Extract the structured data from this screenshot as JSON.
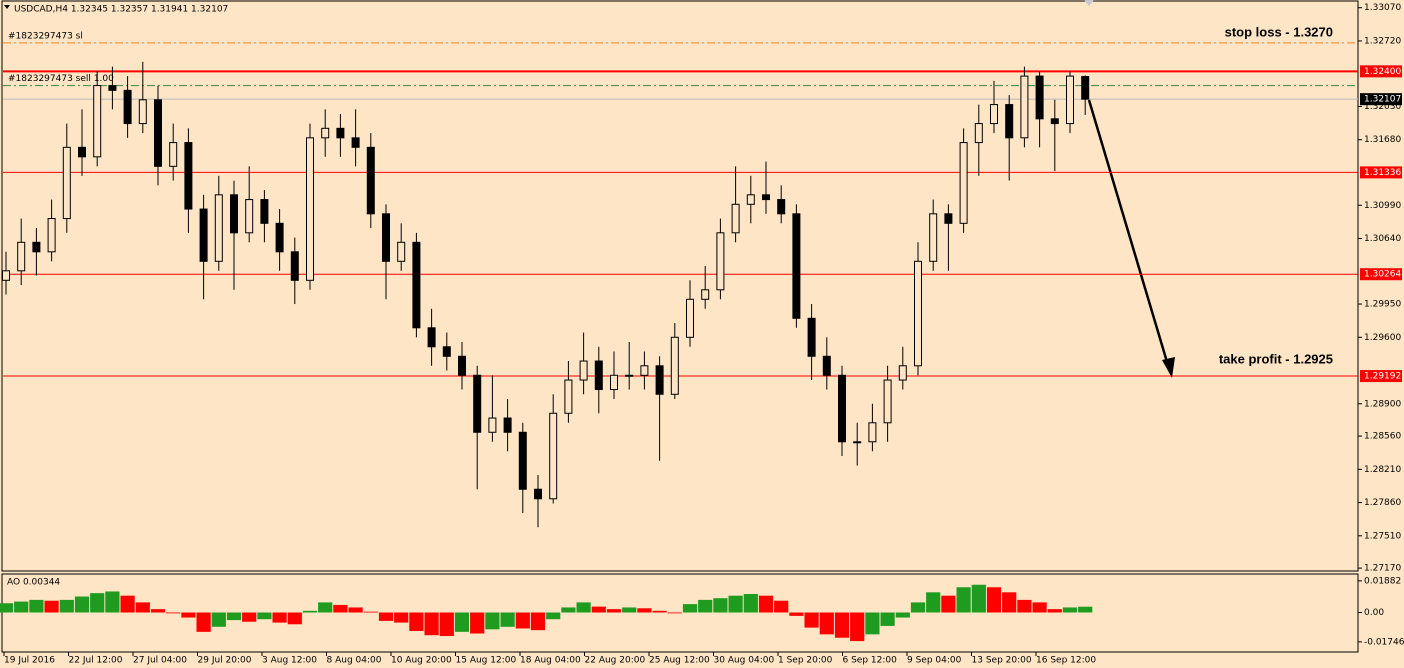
{
  "chart_data": [
    {
      "type": "candlestick",
      "title": "USDCAD,H4  1.32345 1.32357 1.31941 1.32107",
      "open": [
        1.302,
        1.303,
        1.306,
        1.305,
        1.3085,
        1.316,
        1.315,
        1.3225,
        1.322,
        1.3185,
        1.321,
        1.314,
        1.3165,
        1.3095,
        1.304,
        1.311,
        1.307,
        1.3105,
        1.308,
        1.305,
        1.302,
        1.317,
        1.318,
        1.317,
        1.316,
        1.309,
        1.304,
        1.306,
        1.297,
        1.295,
        1.294,
        1.292,
        1.286,
        1.2875,
        1.286,
        1.28,
        1.279,
        1.288,
        1.2915,
        1.2935,
        1.2905,
        1.292,
        1.292,
        1.293,
        1.29,
        1.296,
        1.3,
        1.301,
        1.307,
        1.31,
        1.311,
        1.3105,
        1.309,
        1.298,
        1.294,
        1.292,
        1.285,
        1.285,
        1.287,
        1.2915,
        1.293,
        1.304,
        1.309,
        1.308,
        1.3165,
        1.3185,
        1.3205,
        1.317,
        1.3235,
        1.319,
        1.3185,
        1.32345
      ],
      "high": [
        1.305,
        1.3085,
        1.3075,
        1.3105,
        1.3185,
        1.32,
        1.324,
        1.3245,
        1.3235,
        1.325,
        1.3225,
        1.3185,
        1.318,
        1.311,
        1.313,
        1.3125,
        1.314,
        1.3115,
        1.3095,
        1.3065,
        1.3185,
        1.32,
        1.3195,
        1.32,
        1.3175,
        1.31,
        1.308,
        1.307,
        1.299,
        1.2965,
        1.2955,
        1.293,
        1.292,
        1.2895,
        1.287,
        1.2815,
        1.29,
        1.2935,
        1.2965,
        1.295,
        1.2945,
        1.2955,
        1.2945,
        1.294,
        1.2975,
        1.302,
        1.3035,
        1.3085,
        1.314,
        1.313,
        1.3145,
        1.312,
        1.31,
        1.2995,
        1.296,
        1.293,
        1.287,
        1.289,
        1.293,
        1.295,
        1.306,
        1.3105,
        1.31,
        1.318,
        1.3205,
        1.323,
        1.3215,
        1.3245,
        1.324,
        1.321,
        1.324,
        1.32357
      ],
      "low": [
        1.3005,
        1.3015,
        1.3025,
        1.304,
        1.307,
        1.313,
        1.314,
        1.32,
        1.317,
        1.3175,
        1.312,
        1.3125,
        1.307,
        1.3,
        1.303,
        1.301,
        1.306,
        1.306,
        1.303,
        1.2995,
        1.301,
        1.315,
        1.315,
        1.314,
        1.3075,
        1.3,
        1.303,
        1.296,
        1.293,
        1.2925,
        1.2905,
        1.28,
        1.285,
        1.284,
        1.2775,
        1.276,
        1.2785,
        1.287,
        1.29,
        1.288,
        1.2895,
        1.2905,
        1.2905,
        1.283,
        1.2895,
        1.295,
        1.299,
        1.3,
        1.306,
        1.308,
        1.309,
        1.308,
        1.297,
        1.2915,
        1.2905,
        1.2835,
        1.2825,
        1.284,
        1.285,
        1.2905,
        1.292,
        1.303,
        1.303,
        1.307,
        1.313,
        1.3175,
        1.3125,
        1.316,
        1.316,
        1.3135,
        1.3175,
        1.31941
      ],
      "close": [
        1.303,
        1.306,
        1.305,
        1.3085,
        1.316,
        1.315,
        1.3225,
        1.322,
        1.3185,
        1.321,
        1.314,
        1.3165,
        1.3095,
        1.304,
        1.311,
        1.307,
        1.3105,
        1.308,
        1.305,
        1.302,
        1.317,
        1.318,
        1.317,
        1.316,
        1.309,
        1.304,
        1.306,
        1.297,
        1.295,
        1.294,
        1.292,
        1.286,
        1.2875,
        1.286,
        1.28,
        1.279,
        1.288,
        1.2915,
        1.2935,
        1.2905,
        1.292,
        1.292,
        1.293,
        1.29,
        1.296,
        1.3,
        1.301,
        1.307,
        1.31,
        1.311,
        1.3105,
        1.309,
        1.298,
        1.294,
        1.292,
        1.285,
        1.285,
        1.287,
        1.2915,
        1.293,
        1.304,
        1.309,
        1.308,
        1.3165,
        1.3185,
        1.3205,
        1.317,
        1.3235,
        1.319,
        1.3185,
        1.3235,
        1.32107
      ],
      "ylim": [
        1.2715,
        1.3313
      ],
      "yticks": [
        {
          "value": 1.3307,
          "label": "1.33070"
        },
        {
          "value": 1.3272,
          "label": "1.32720"
        },
        {
          "value": 1.3203,
          "label": "1.32030"
        },
        {
          "value": 1.3168,
          "label": "1.31680"
        },
        {
          "value": 1.3099,
          "label": "1.30990"
        },
        {
          "value": 1.3064,
          "label": "1.30640"
        },
        {
          "value": 1.2995,
          "label": "1.29950"
        },
        {
          "value": 1.296,
          "label": "1.29600"
        },
        {
          "value": 1.289,
          "label": "1.28900"
        },
        {
          "value": 1.2856,
          "label": "1.28560"
        },
        {
          "value": 1.2821,
          "label": "1.28210"
        },
        {
          "value": 1.2786,
          "label": "1.27860"
        },
        {
          "value": 1.2751,
          "label": "1.27510"
        },
        {
          "value": 1.2717,
          "label": "1.27170"
        }
      ],
      "levels": [
        {
          "value": 1.324,
          "label": "1.32400",
          "color": "#ff0000"
        },
        {
          "value": 1.31336,
          "label": "1.31336",
          "color": "#ff0000"
        },
        {
          "value": 1.30264,
          "label": "1.30264",
          "color": "#ff0000"
        },
        {
          "value": 1.29192,
          "label": "1.29192",
          "color": "#ff0000"
        }
      ],
      "last_price": {
        "value": 1.32107,
        "label": "1.32107"
      },
      "trade_lines": [
        {
          "value": 1.327,
          "label": "#1823297473 sl",
          "color": "#ff7f27"
        },
        {
          "value": 1.3225,
          "label": "#1823297473 sell 1.00",
          "color": "#3a8a3a"
        }
      ],
      "annotations": [
        "stop loss - 1.3270",
        "take profit - 1.2925"
      ],
      "x_labels": [
        "19 Jul 2016",
        "22 Jul 12:00",
        "27 Jul 04:00",
        "29 Jul 20:00",
        "3 Aug 12:00",
        "8 Aug 04:00",
        "10 Aug 20:00",
        "15 Aug 12:00",
        "18 Aug 04:00",
        "22 Aug 20:00",
        "25 Aug 12:00",
        "30 Aug 04:00",
        "1 Sep 20:00",
        "6 Sep 12:00",
        "9 Sep 04:00",
        "13 Sep 20:00",
        "16 Sep 12:00"
      ]
    },
    {
      "type": "bar",
      "title": "AO 0.00344",
      "values": [
        0.0055,
        0.0065,
        0.0075,
        0.007,
        0.0075,
        0.0095,
        0.0115,
        0.0125,
        0.01,
        0.006,
        0.002,
        -0.0005,
        -0.003,
        -0.0115,
        -0.0085,
        -0.0045,
        -0.0055,
        -0.004,
        -0.006,
        -0.007,
        0.001,
        0.006,
        0.0045,
        0.003,
        0.0005,
        -0.005,
        -0.006,
        -0.011,
        -0.0135,
        -0.014,
        -0.0115,
        -0.0125,
        -0.01,
        -0.0085,
        -0.0095,
        -0.0105,
        -0.004,
        0.003,
        0.006,
        0.0035,
        0.002,
        0.003,
        0.0025,
        0.001,
        -0.0005,
        0.005,
        0.0075,
        0.0085,
        0.01,
        0.011,
        0.01,
        0.007,
        -0.002,
        -0.009,
        -0.013,
        -0.015,
        -0.017,
        -0.013,
        -0.008,
        -0.003,
        0.006,
        0.012,
        0.01,
        0.015,
        0.0165,
        0.015,
        0.012,
        0.0075,
        0.006,
        0.002,
        0.003,
        0.00344
      ],
      "up_color": "#1f9b1f",
      "down_color": "#ff0000",
      "ylim": [
        -0.0229,
        0.0223
      ],
      "yticks": [
        {
          "value": 0.01882,
          "label": "0.01882"
        },
        {
          "value": 0,
          "label": "0.00"
        },
        {
          "value": -0.01746,
          "label": "-0.01746"
        }
      ]
    }
  ]
}
